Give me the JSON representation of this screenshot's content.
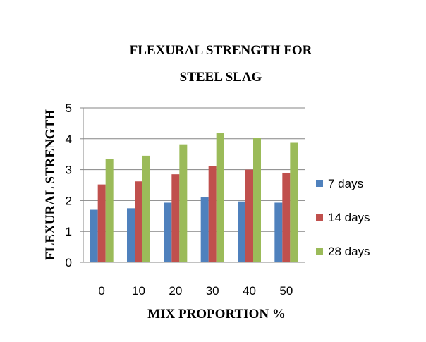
{
  "chart_data": {
    "type": "bar",
    "title_lines": [
      "FLEXURAL  STRENGTH  FOR",
      "STEEL  SLAG"
    ],
    "xlabel": "MIX  PROPORTION  %",
    "ylabel": "FLEXURAL  STRENGTH",
    "categories": [
      "0",
      "10",
      "20",
      "30",
      "40",
      "50"
    ],
    "ylim": [
      0,
      5
    ],
    "yticks": [
      "0",
      "1",
      "2",
      "3",
      "4",
      "5"
    ],
    "grid": true,
    "legend_position": "right",
    "series": [
      {
        "name": "7 days",
        "color": "#4f81bd",
        "values": [
          1.7,
          1.75,
          1.93,
          2.1,
          1.97,
          1.93
        ]
      },
      {
        "name": "14 days",
        "color": "#c0504d",
        "values": [
          2.52,
          2.62,
          2.85,
          3.12,
          3.0,
          2.9
        ]
      },
      {
        "name": "28 days",
        "color": "#9bbb59",
        "values": [
          3.35,
          3.45,
          3.82,
          4.18,
          4.02,
          3.87
        ]
      }
    ]
  }
}
